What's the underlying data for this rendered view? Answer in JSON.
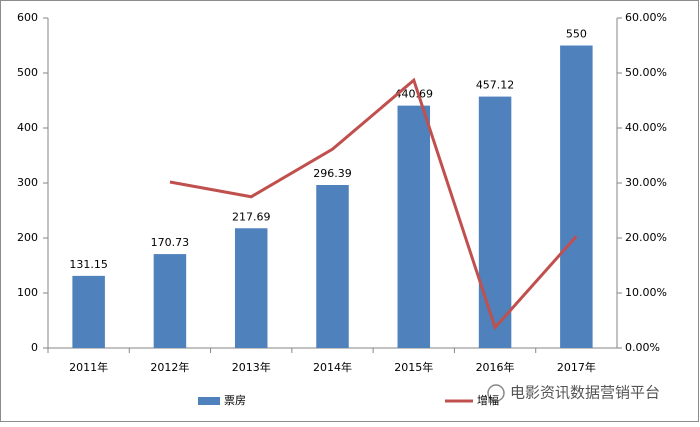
{
  "chart_data": {
    "type": "bar",
    "categories": [
      "2011年",
      "2012年",
      "2013年",
      "2014年",
      "2015年",
      "2016年",
      "2017年"
    ],
    "series": [
      {
        "name": "票房",
        "color": "#4f81bd",
        "values": [
          131.15,
          170.73,
          217.69,
          296.39,
          440.69,
          457.12,
          550
        ]
      },
      {
        "name": "增幅",
        "color": "#c0504d",
        "type": "line",
        "axis": "y2",
        "values": [
          null,
          30.18,
          27.5,
          36.15,
          48.69,
          3.73,
          20.32
        ]
      }
    ],
    "ylim": [
      0,
      600
    ],
    "yticks": [
      0,
      100,
      200,
      300,
      400,
      500,
      600
    ],
    "y2lim": [
      0,
      60
    ],
    "y2ticks": [
      {
        "value": 0,
        "label": "0.00%"
      },
      {
        "value": 10,
        "label": "10.00%"
      },
      {
        "value": 20,
        "label": "20.00%"
      },
      {
        "value": 30,
        "label": "30.00%"
      },
      {
        "value": 40,
        "label": "40.00%"
      },
      {
        "value": 50,
        "label": "50.00%"
      },
      {
        "value": 60,
        "label": "60.00%"
      }
    ],
    "legend": "bottom"
  },
  "watermark": "电影资讯数据营销平台"
}
